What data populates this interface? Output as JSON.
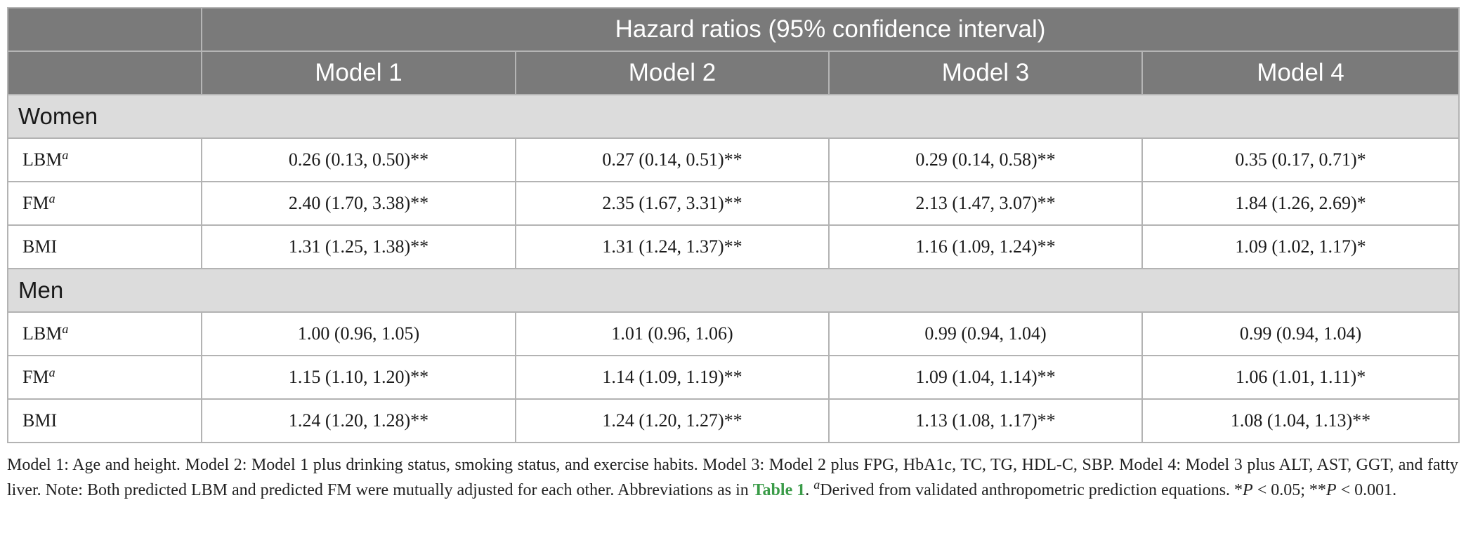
{
  "table": {
    "group_header": "Hazard ratios (95% confidence interval)",
    "models": [
      "Model 1",
      "Model 2",
      "Model 3",
      "Model 4"
    ],
    "sections": [
      {
        "name": "Women",
        "rows": [
          {
            "label": "LBM",
            "sup": "a",
            "values": [
              "0.26 (0.13, 0.50)**",
              "0.27 (0.14, 0.51)**",
              "0.29 (0.14, 0.58)**",
              "0.35 (0.17, 0.71)*"
            ]
          },
          {
            "label": "FM",
            "sup": "a",
            "values": [
              "2.40 (1.70, 3.38)**",
              "2.35 (1.67, 3.31)**",
              "2.13 (1.47, 3.07)**",
              "1.84 (1.26, 2.69)*"
            ]
          },
          {
            "label": "BMI",
            "sup": "",
            "values": [
              "1.31 (1.25, 1.38)**",
              "1.31 (1.24, 1.37)**",
              "1.16 (1.09, 1.24)**",
              "1.09 (1.02, 1.17)*"
            ]
          }
        ]
      },
      {
        "name": "Men",
        "rows": [
          {
            "label": "LBM",
            "sup": "a",
            "values": [
              "1.00 (0.96, 1.05)",
              "1.01 (0.96, 1.06)",
              "0.99 (0.94, 1.04)",
              "0.99 (0.94, 1.04)"
            ]
          },
          {
            "label": "FM",
            "sup": "a",
            "values": [
              "1.15 (1.10, 1.20)**",
              "1.14 (1.09, 1.19)**",
              "1.09 (1.04, 1.14)**",
              "1.06 (1.01, 1.11)*"
            ]
          },
          {
            "label": "BMI",
            "sup": "",
            "values": [
              "1.24 (1.20, 1.28)**",
              "1.24 (1.20, 1.27)**",
              "1.13 (1.08, 1.17)**",
              "1.08 (1.04, 1.13)**"
            ]
          }
        ]
      }
    ]
  },
  "footnote": {
    "text_main": "Model 1: Age and height. Model 2: Model 1 plus drinking status, smoking status, and exercise habits. Model 3: Model 2 plus FPG, HbA1c, TC, TG, HDL-C, SBP. Model 4: Model 3 plus ALT, AST, GGT, and fatty liver. Note: Both predicted LBM and predicted FM were mutually adjusted for each other. Abbreviations as in ",
    "link_text": "Table 1",
    "after_link": ". ",
    "sup_a": "a",
    "derived_text": "Derived from validated anthropometric prediction equations. ",
    "p1_star": "*",
    "p_letter": "P",
    "p1_rest": " < 0.05; ",
    "p2_star": "**",
    "p2_rest": " < 0.001.",
    "link_color": "#3a9b48"
  },
  "colors": {
    "header_bg": "#7a7a7a",
    "section_bg": "#dcdcdc",
    "border": "#b3b3b3"
  }
}
